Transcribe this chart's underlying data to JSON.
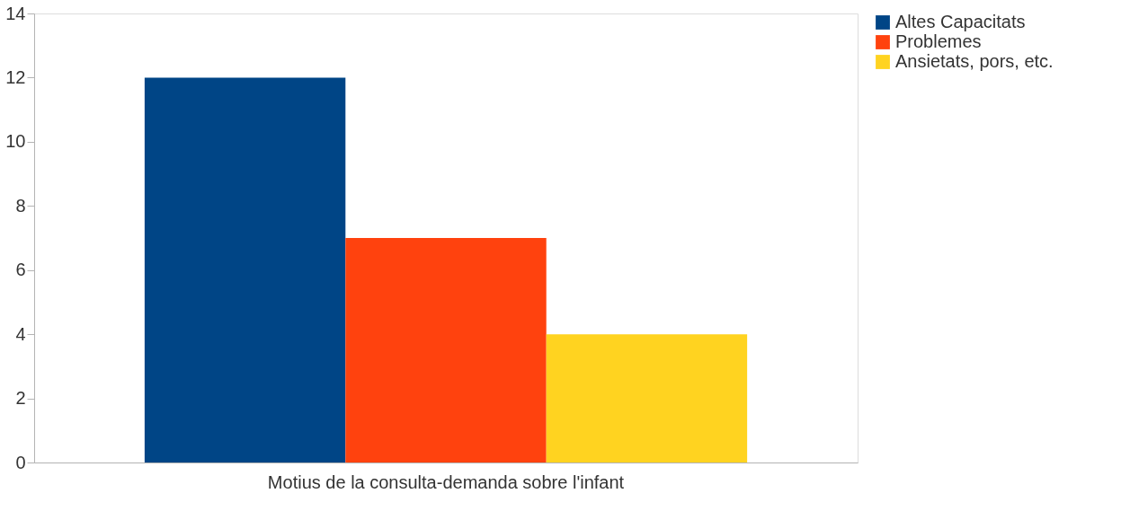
{
  "chart_data": {
    "type": "bar",
    "categories": [
      "Motius de la consulta-demanda sobre l'infant"
    ],
    "series": [
      {
        "name": "Altes Capacitats",
        "color": "#004586",
        "values": [
          12
        ]
      },
      {
        "name": "Problemes",
        "color": "#ff420e",
        "values": [
          7
        ]
      },
      {
        "name": "Ansietats, pors, etc.",
        "color": "#ffd320",
        "values": [
          4
        ]
      }
    ],
    "ylim": [
      0,
      14
    ],
    "yticks": [
      0,
      2,
      4,
      6,
      8,
      10,
      12,
      14
    ],
    "grid": false,
    "legend": "right"
  }
}
